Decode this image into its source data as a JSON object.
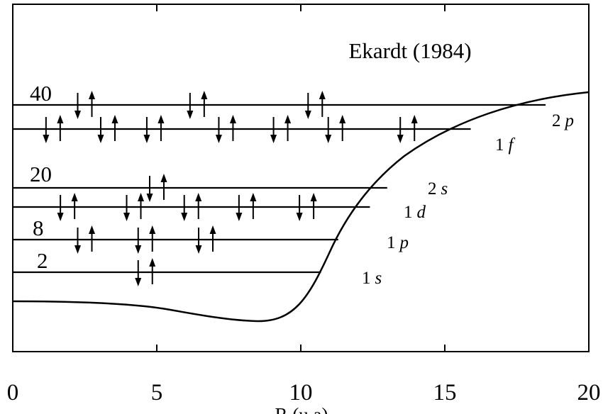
{
  "attribution": "Ekardt (1984)",
  "axis": {
    "xlabel": "R (u.a)",
    "xlim": [
      0,
      20
    ],
    "ticks": [
      {
        "value": 0,
        "label": "0"
      },
      {
        "value": 5,
        "label": "5"
      },
      {
        "value": 10,
        "label": "10"
      },
      {
        "value": 15,
        "label": "15"
      },
      {
        "value": 20,
        "label": "20"
      }
    ]
  },
  "magic_numbers": [
    {
      "label": "40",
      "level": "2p"
    },
    {
      "label": "20",
      "level": "2s"
    },
    {
      "label": "8",
      "level": "1p"
    },
    {
      "label": "2",
      "level": "1s"
    }
  ],
  "levels": [
    {
      "id": "2p",
      "num": "2",
      "letter": "p",
      "x_end": 18.5,
      "pairs": [
        2.5,
        6.4,
        10.5
      ]
    },
    {
      "id": "1f",
      "num": "1",
      "letter": "f",
      "x_end": 15.9,
      "pairs": [
        1.4,
        3.3,
        4.9,
        7.4,
        9.3,
        11.2,
        13.7
      ]
    },
    {
      "id": "2s",
      "num": "2",
      "letter": "s",
      "x_end": 13.0,
      "pairs": [
        5.0
      ]
    },
    {
      "id": "1d",
      "num": "1",
      "letter": "d",
      "x_end": 12.4,
      "pairs": [
        1.9,
        4.2,
        6.2,
        8.1,
        10.2
      ]
    },
    {
      "id": "1p",
      "num": "1",
      "letter": "p",
      "x_end": 11.3,
      "pairs": [
        2.5,
        4.6,
        6.7
      ]
    },
    {
      "id": "1s",
      "num": "1",
      "letter": "s",
      "x_end": 10.7,
      "pairs": [
        4.6
      ]
    }
  ]
}
